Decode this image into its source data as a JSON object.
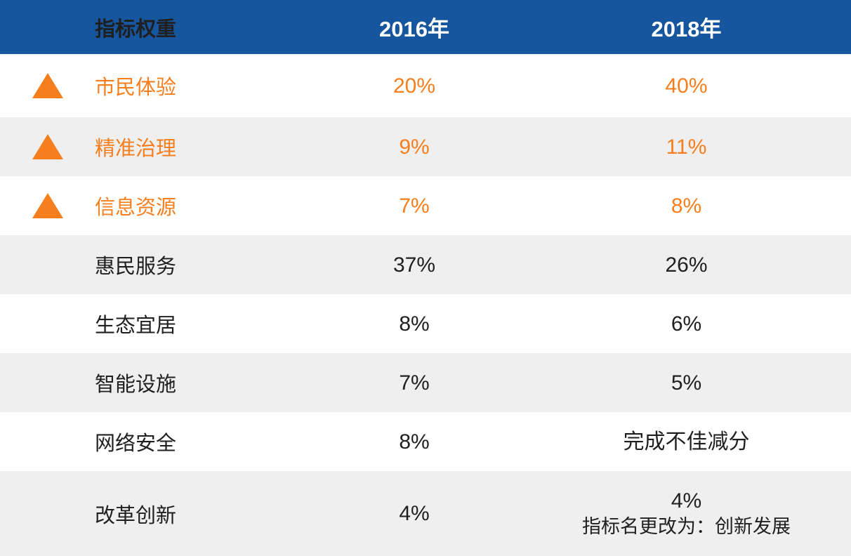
{
  "table": {
    "header": {
      "indicator": "指标权重",
      "y2016": "2016年",
      "y2018": "2018年"
    },
    "rows": [
      {
        "label": "市民体验",
        "v2016": "20%",
        "v2018": "40%",
        "highlight": true
      },
      {
        "label": "精准治理",
        "v2016": "9%",
        "v2018": "11%",
        "highlight": true
      },
      {
        "label": "信息资源",
        "v2016": "7%",
        "v2018": "8%",
        "highlight": true
      },
      {
        "label": "惠民服务",
        "v2016": "37%",
        "v2018": "26%",
        "highlight": false
      },
      {
        "label": "生态宜居",
        "v2016": "8%",
        "v2018": "6%",
        "highlight": false
      },
      {
        "label": "智能设施",
        "v2016": "7%",
        "v2018": "5%",
        "highlight": false
      },
      {
        "label": "网络安全",
        "v2016": "8%",
        "v2018": "完成不佳减分",
        "highlight": false
      },
      {
        "label": "改革创新",
        "v2016": "4%",
        "v2018": "4%",
        "v2018_note": "指标名更改为：创新发展",
        "highlight": false
      }
    ],
    "colors": {
      "header_bg": "#16569E",
      "accent_orange": "#F67E1C",
      "row_alt_bg": "#EFEFEF",
      "text": "#1F1F1F"
    }
  },
  "chart_data": {
    "type": "table",
    "title": "指标权重",
    "columns": [
      "指标权重",
      "2016年",
      "2018年"
    ],
    "rows": [
      [
        "市民体验",
        "20%",
        "40%"
      ],
      [
        "精准治理",
        "9%",
        "11%"
      ],
      [
        "信息资源",
        "7%",
        "8%"
      ],
      [
        "惠民服务",
        "37%",
        "26%"
      ],
      [
        "生态宜居",
        "8%",
        "6%"
      ],
      [
        "智能设施",
        "7%",
        "5%"
      ],
      [
        "网络安全",
        "8%",
        "完成不佳减分"
      ],
      [
        "改革创新",
        "4%",
        "4% 指标名更改为：创新发展"
      ]
    ],
    "notes": "前三行（市民体验、精准治理、信息资源）为橙色高亮并带上升三角图标，表示权重上升",
    "legend_position": "none",
    "grid": "alternating-row-stripes"
  }
}
